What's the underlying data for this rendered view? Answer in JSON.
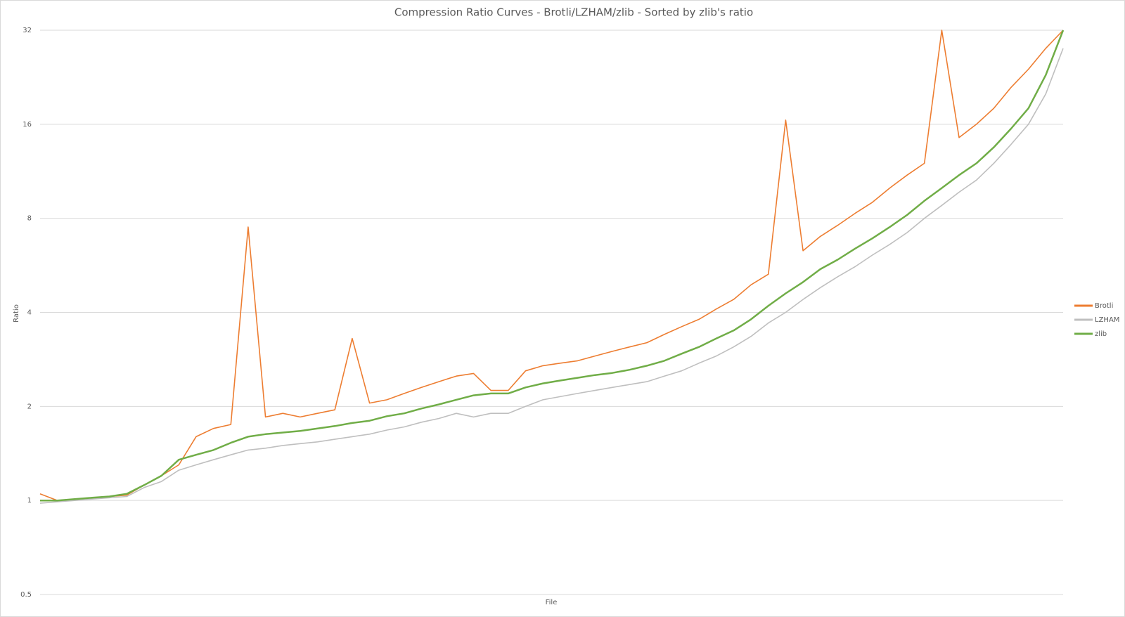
{
  "chart_data": {
    "type": "line",
    "title": "Compression Ratio Curves - Brotli/LZHAM/zlib - Sorted by zlib's ratio",
    "x_label": "File",
    "y_label": "Ratio",
    "categories": [
      null,
      null,
      null,
      null,
      null,
      null,
      null,
      null,
      null,
      null,
      null,
      null,
      null,
      null,
      null,
      null,
      null,
      null,
      null,
      null,
      null,
      null,
      null,
      null,
      null,
      null,
      null,
      null,
      null,
      null,
      null,
      null,
      null,
      null,
      null,
      null,
      null,
      null,
      null,
      null,
      null,
      null,
      null,
      null,
      null,
      null,
      null,
      null,
      null,
      null,
      null,
      null,
      null,
      null,
      null,
      null,
      null,
      null,
      null,
      null
    ],
    "series": [
      {
        "name": "Brotli",
        "color": "#ed7d31",
        "values": [
          1.05,
          1.0,
          1.01,
          1.02,
          1.03,
          1.04,
          1.12,
          1.2,
          1.3,
          1.6,
          1.7,
          1.75,
          7.5,
          1.85,
          1.9,
          1.85,
          1.9,
          1.95,
          3.3,
          2.05,
          2.1,
          2.2,
          2.3,
          2.4,
          2.5,
          2.55,
          2.25,
          2.25,
          2.6,
          2.7,
          2.75,
          2.8,
          2.9,
          3.0,
          3.1,
          3.2,
          3.4,
          3.6,
          3.8,
          4.1,
          4.4,
          4.9,
          5.3,
          16.5,
          6.3,
          7,
          7.6,
          8.3,
          9,
          10,
          11,
          12,
          32,
          14.5,
          16,
          18,
          21,
          24,
          28,
          32
        ]
      },
      {
        "name": "LZHAM",
        "color": "#bfbfbf",
        "values": [
          0.98,
          0.99,
          1.0,
          1.01,
          1.02,
          1.03,
          1.1,
          1.15,
          1.25,
          1.3,
          1.35,
          1.4,
          1.45,
          1.47,
          1.5,
          1.52,
          1.54,
          1.57,
          1.6,
          1.63,
          1.68,
          1.72,
          1.78,
          1.83,
          1.9,
          1.85,
          1.9,
          1.9,
          2.0,
          2.1,
          2.15,
          2.2,
          2.25,
          2.3,
          2.35,
          2.4,
          2.5,
          2.6,
          2.75,
          2.9,
          3.1,
          3.35,
          3.7,
          4.0,
          4.4,
          4.8,
          5.2,
          5.6,
          6.1,
          6.6,
          7.2,
          8,
          8.8,
          9.7,
          10.6,
          12,
          13.8,
          16,
          20,
          28
        ]
      },
      {
        "name": "zlib",
        "color": "#70ad47",
        "values": [
          1.0,
          1.0,
          1.01,
          1.02,
          1.03,
          1.05,
          1.12,
          1.2,
          1.35,
          1.4,
          1.45,
          1.53,
          1.6,
          1.63,
          1.65,
          1.67,
          1.7,
          1.73,
          1.77,
          1.8,
          1.86,
          1.9,
          1.97,
          2.03,
          2.1,
          2.17,
          2.2,
          2.2,
          2.3,
          2.37,
          2.42,
          2.47,
          2.52,
          2.56,
          2.62,
          2.7,
          2.8,
          2.95,
          3.1,
          3.3,
          3.5,
          3.8,
          4.2,
          4.6,
          5.0,
          5.5,
          5.9,
          6.4,
          6.9,
          7.5,
          8.2,
          9.1,
          10,
          11,
          12,
          13.5,
          15.5,
          18,
          23,
          32
        ]
      }
    ],
    "ylim": [
      0.5,
      32
    ],
    "yticks": [
      0.5,
      1,
      2,
      4,
      8,
      16,
      32
    ],
    "log_y": true,
    "log_base": 2,
    "grid": true,
    "legend": "right"
  }
}
